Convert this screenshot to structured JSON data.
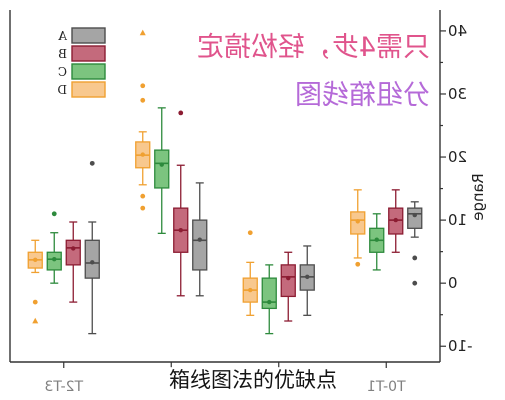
{
  "caption": "箱线图法的优缺点",
  "chart_data": {
    "type": "box",
    "mirrored": true,
    "annotations": [
      {
        "text": "只需4步，轻松搞定",
        "color": "#e0548c"
      },
      {
        "text": "分组箱线图",
        "color": "#b56ad8"
      }
    ],
    "ylabel": "Range",
    "categories": [
      "T2-T3",
      "",
      "",
      "T0-T1"
    ],
    "ylim": [
      -12.5,
      43
    ],
    "yticks": [
      -10,
      0,
      10,
      20,
      30,
      40
    ],
    "grid": false,
    "legend": "top-left",
    "series": [
      {
        "name": "A",
        "fill": "#a5a5a5",
        "edge": "#4d4d4d",
        "boxes": [
          {
            "whisker_low": -8.0,
            "q1": 0.8,
            "median": 3.2,
            "q3": 6.8,
            "whisker_high": 9.7,
            "mean": 3.3,
            "outliers": [
              19.0
            ],
            "triangles": []
          },
          {
            "whisker_low": -2.0,
            "q1": 2.1,
            "median": 6.8,
            "q3": 10.0,
            "whisker_high": 15.9,
            "mean": 6.9,
            "outliers": [],
            "triangles": []
          },
          {
            "whisker_low": -5.1,
            "q1": -1.1,
            "median": 1.0,
            "q3": 2.9,
            "whisker_high": 5.9,
            "mean": 1.0,
            "outliers": [],
            "triangles": []
          },
          {
            "whisker_low": 7.3,
            "q1": 8.7,
            "median": 11.0,
            "q3": 11.9,
            "whisker_high": 12.9,
            "mean": 10.8,
            "outliers": [
              4.0,
              0.0
            ],
            "triangles": []
          }
        ]
      },
      {
        "name": "B",
        "fill": "#c46a7c",
        "edge": "#8c1c32",
        "boxes": [
          {
            "whisker_low": -3.0,
            "q1": 2.9,
            "median": 5.6,
            "q3": 6.8,
            "whisker_high": 9.7,
            "mean": 5.5,
            "outliers": [],
            "triangles": []
          },
          {
            "whisker_low": -2.0,
            "q1": 4.9,
            "median": 8.4,
            "q3": 11.9,
            "whisker_high": 18.7,
            "mean": 8.4,
            "outliers": [
              27.0
            ],
            "triangles": []
          },
          {
            "whisker_low": -6.0,
            "q1": -2.1,
            "median": 1.0,
            "q3": 2.9,
            "whisker_high": 4.9,
            "mean": 0.8,
            "outliers": [],
            "triangles": []
          },
          {
            "whisker_low": 4.9,
            "q1": 7.8,
            "median": 10.0,
            "q3": 11.9,
            "whisker_high": 14.8,
            "mean": 10.0,
            "outliers": [],
            "triangles": []
          }
        ]
      },
      {
        "name": "C",
        "fill": "#7cc47f",
        "edge": "#2d8a3c",
        "boxes": [
          {
            "whisker_low": 0.0,
            "q1": 2.1,
            "median": 3.8,
            "q3": 4.9,
            "whisker_high": 8.0,
            "mean": 3.8,
            "outliers": [
              11.0
            ],
            "triangles": []
          },
          {
            "whisker_low": 7.9,
            "q1": 15.1,
            "median": 19.0,
            "q3": 21.1,
            "whisker_high": 27.8,
            "mean": 18.8,
            "outliers": [],
            "triangles": []
          },
          {
            "whisker_low": -8.0,
            "q1": -4.0,
            "median": -3.0,
            "q3": 0.8,
            "whisker_high": 2.9,
            "mean": -3.0,
            "outliers": [],
            "triangles": []
          },
          {
            "whisker_low": 2.1,
            "q1": 4.9,
            "median": 6.8,
            "q3": 8.7,
            "whisker_high": 11.0,
            "mean": 6.9,
            "outliers": [],
            "triangles": []
          }
        ]
      },
      {
        "name": "D",
        "fill": "#f8c88e",
        "edge": "#f0a030",
        "boxes": [
          {
            "whisker_low": 1.7,
            "q1": 2.4,
            "median": 3.7,
            "q3": 4.9,
            "whisker_high": 6.8,
            "mean": 3.7,
            "outliers": [
              -3.0
            ],
            "triangles": [
              -6.0
            ]
          },
          {
            "whisker_low": 15.6,
            "q1": 18.3,
            "median": 20.3,
            "q3": 22.4,
            "whisker_high": 24.0,
            "mean": 20.4,
            "outliers": [
              31.3,
              29.0,
              13.8,
              11.9
            ],
            "triangles": [
              39.7
            ]
          },
          {
            "whisker_low": -5.1,
            "q1": -3.0,
            "median": -1.1,
            "q3": 0.8,
            "whisker_high": 3.3,
            "mean": -1.1,
            "outliers": [
              8.0
            ],
            "triangles": []
          },
          {
            "whisker_low": 4.0,
            "q1": 7.8,
            "median": 10.0,
            "q3": 11.3,
            "whisker_high": 14.8,
            "mean": 9.8,
            "outliers": [
              3.0
            ],
            "triangles": []
          }
        ]
      }
    ]
  }
}
